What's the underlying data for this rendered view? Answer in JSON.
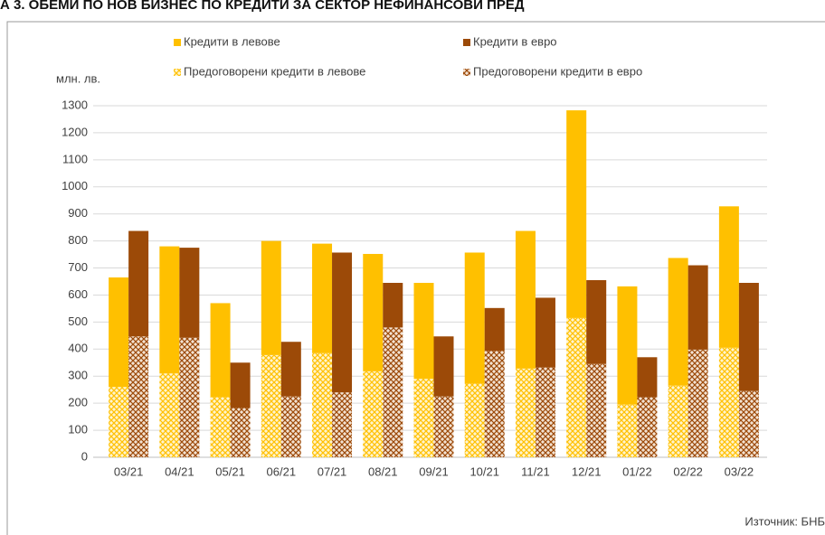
{
  "chart_data": {
    "type": "stacked_grouped_bar",
    "title": "А 3. ОБЕМИ ПО НОВ БИЗНЕС ПО КРЕДИТИ ЗА СЕКТОР НЕФИНАНСОВИ ПРЕД",
    "y_label": "млн. лв.",
    "source": "Източник: БНБ",
    "categories": [
      "03/21",
      "04/21",
      "05/21",
      "06/21",
      "07/21",
      "08/21",
      "09/21",
      "10/21",
      "11/21",
      "12/21",
      "01/22",
      "02/22",
      "03/22"
    ],
    "series": [
      {
        "name": "Предоговорени кредити в левове",
        "color": "#ffc000",
        "stack": "bgn",
        "hatched": true,
        "values": [
          260,
          310,
          222,
          378,
          385,
          318,
          290,
          272,
          328,
          515,
          195,
          265,
          405
        ]
      },
      {
        "name": "Кредити в левове",
        "color": "#ffc000",
        "stack": "bgn",
        "hatched": false,
        "values": [
          405,
          470,
          348,
          422,
          405,
          434,
          355,
          485,
          509,
          768,
          437,
          472,
          523
        ]
      },
      {
        "name": "Предоговорени кредити в евро",
        "color": "#9c4a08",
        "stack": "eur",
        "hatched": true,
        "values": [
          447,
          442,
          182,
          225,
          240,
          480,
          225,
          393,
          332,
          345,
          222,
          398,
          245
        ]
      },
      {
        "name": "Кредити в евро",
        "color": "#9c4a08",
        "stack": "eur",
        "hatched": false,
        "values": [
          390,
          333,
          168,
          202,
          517,
          165,
          222,
          159,
          258,
          310,
          148,
          312,
          400
        ]
      }
    ],
    "ylim": [
      0,
      1300
    ],
    "yticks": [
      0,
      100,
      200,
      300,
      400,
      500,
      600,
      700,
      800,
      900,
      1000,
      1100,
      1200,
      1300
    ],
    "grid": true
  }
}
